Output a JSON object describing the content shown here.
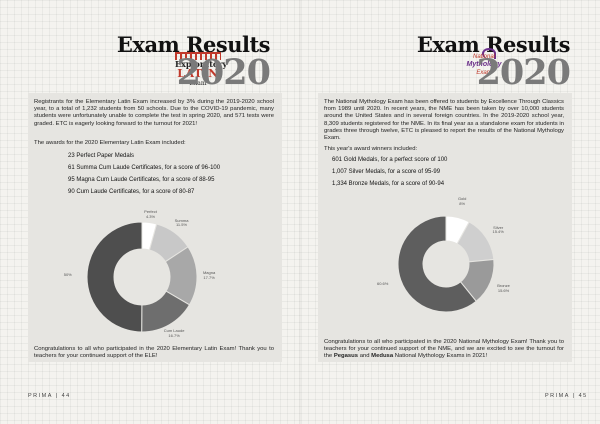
{
  "left": {
    "title": "Exam Results",
    "year": "2020",
    "logo": {
      "line1": "Exploratory",
      "line2": "LATIN",
      "line3": "Exam"
    },
    "intro": "Registrants for the Elementary Latin Exam increased by 3% during the 2019-2020 school year, to a total of 1,232 students from 50 schools. Due to the COVID-19 pandemic, many students were unfortunately unable to complete the test in spring 2020, and 571 tests were graded. ETC is eagerly looking forward to the turnout for 2021!",
    "awards_intro": "The awards for the 2020 Elementary Latin Exam included:",
    "awards": [
      "23 Perfect Paper Medals",
      "61 Summa Cum Laude Certificates, for a score of 96-100",
      "95 Magna Cum Laude Certificates, for a score of 88-95",
      "90 Cum Laude Certificates, for a score of 80-87"
    ],
    "closing": "Congratulations to all who participated in the 2020 Elementary Latin Exam! Thank you to teachers for your continued support of the ELE!",
    "footer": "PRIMA | 44"
  },
  "right": {
    "title": "Exam Results",
    "year": "2020",
    "logo": {
      "line1": "National",
      "line2": "Mythology",
      "line3": "Exam"
    },
    "intro": "The National Mythology Exam has been offered to students by Excellence Through Classics from 1989 until 2020. In recent years, the NME has been taken by over 10,000 students around the United States and in several foreign countries. In the 2019-2020 school year, 8,309 students registered for the NME. In its final year as a standalone exam for students in grades three through twelve, ETC is pleased to report the results of the National Mythology Exam.",
    "awards_intro": "This year's award winners included:",
    "awards": [
      "601 Gold Medals, for a perfect score of 100",
      "1,007 Silver Medals, for a score of 95-99",
      "1,334 Bronze Medals, for a score of 90-94"
    ],
    "closing_pre": "Congratulations to all who participated in the 2020 National Mythology Exam! Thank you to teachers for your continued support of the NME, and we are excited to see the turnout for the ",
    "closing_b1": "Pegasus",
    "closing_mid": " and ",
    "closing_b2": "Medusa",
    "closing_post": " National Mythology Exams in 2021!",
    "footer": "PRIMA | 45"
  },
  "chart_data": [
    {
      "type": "pie",
      "categories": [
        "Perfect",
        "Summa",
        "Magna",
        "Cum Laude",
        ""
      ],
      "values": [
        4.3,
        11.5,
        17.7,
        16.7,
        50
      ],
      "value_labels": [
        "4.3%",
        "11.5%",
        "17.7%",
        "16.7%",
        "50%"
      ],
      "colors": [
        "#ffffff",
        "#c8c8c8",
        "#a8a8a8",
        "#6e6e6e",
        "#4e4e4e"
      ]
    },
    {
      "type": "pie",
      "categories": [
        "Gold",
        "Silver",
        "Bronze",
        ""
      ],
      "values": [
        8,
        15.4,
        15.6,
        60.6
      ],
      "value_labels": [
        "8%",
        "15.4%",
        "15.6%",
        "60.6%"
      ],
      "colors": [
        "#ffffff",
        "#cfcfcf",
        "#9a9a9a",
        "#5e5e5e"
      ]
    }
  ]
}
